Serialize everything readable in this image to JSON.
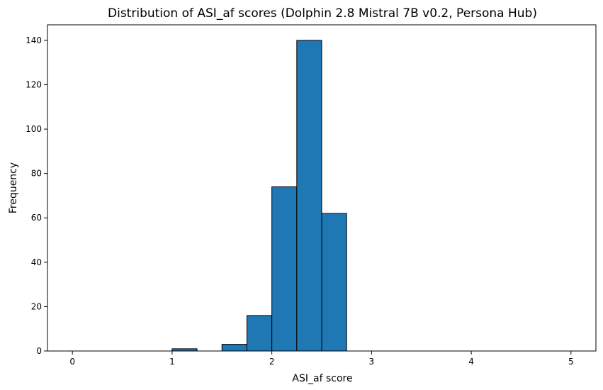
{
  "chart_data": {
    "type": "bar",
    "title": "Distribution of ASI_af scores (Dolphin 2.8 Mistral 7B v0.2, Persona Hub)",
    "xlabel": "ASI_af score",
    "ylabel": "Frequency",
    "bin_width": 0.25,
    "bins": [
      {
        "start": 0.0,
        "end": 0.25,
        "count": 0
      },
      {
        "start": 0.25,
        "end": 0.5,
        "count": 0
      },
      {
        "start": 0.5,
        "end": 0.75,
        "count": 0
      },
      {
        "start": 0.75,
        "end": 1.0,
        "count": 0
      },
      {
        "start": 1.0,
        "end": 1.25,
        "count": 1
      },
      {
        "start": 1.25,
        "end": 1.5,
        "count": 0
      },
      {
        "start": 1.5,
        "end": 1.75,
        "count": 3
      },
      {
        "start": 1.75,
        "end": 2.0,
        "count": 16
      },
      {
        "start": 2.0,
        "end": 2.25,
        "count": 74
      },
      {
        "start": 2.25,
        "end": 2.5,
        "count": 140
      },
      {
        "start": 2.5,
        "end": 2.75,
        "count": 62
      },
      {
        "start": 2.75,
        "end": 3.0,
        "count": 0
      },
      {
        "start": 3.0,
        "end": 3.25,
        "count": 0
      },
      {
        "start": 3.25,
        "end": 3.5,
        "count": 0
      },
      {
        "start": 3.5,
        "end": 3.75,
        "count": 0
      },
      {
        "start": 3.75,
        "end": 4.0,
        "count": 0
      },
      {
        "start": 4.0,
        "end": 4.25,
        "count": 0
      },
      {
        "start": 4.25,
        "end": 4.5,
        "count": 0
      },
      {
        "start": 4.5,
        "end": 4.75,
        "count": 0
      },
      {
        "start": 4.75,
        "end": 5.0,
        "count": 0
      }
    ],
    "xlim": [
      -0.25,
      5.25
    ],
    "ylim": [
      0,
      147
    ],
    "xticks": [
      0,
      1,
      2,
      3,
      4,
      5
    ],
    "xtick_labels": [
      "0",
      "1",
      "2",
      "3",
      "4",
      "5"
    ],
    "yticks": [
      0,
      20,
      40,
      60,
      80,
      100,
      120,
      140
    ],
    "ytick_labels": [
      "0",
      "20",
      "40",
      "60",
      "80",
      "100",
      "120",
      "140"
    ],
    "grid": false,
    "legend": "none",
    "colors": {
      "bar": "#1f77b4",
      "edge": "#000000"
    }
  }
}
